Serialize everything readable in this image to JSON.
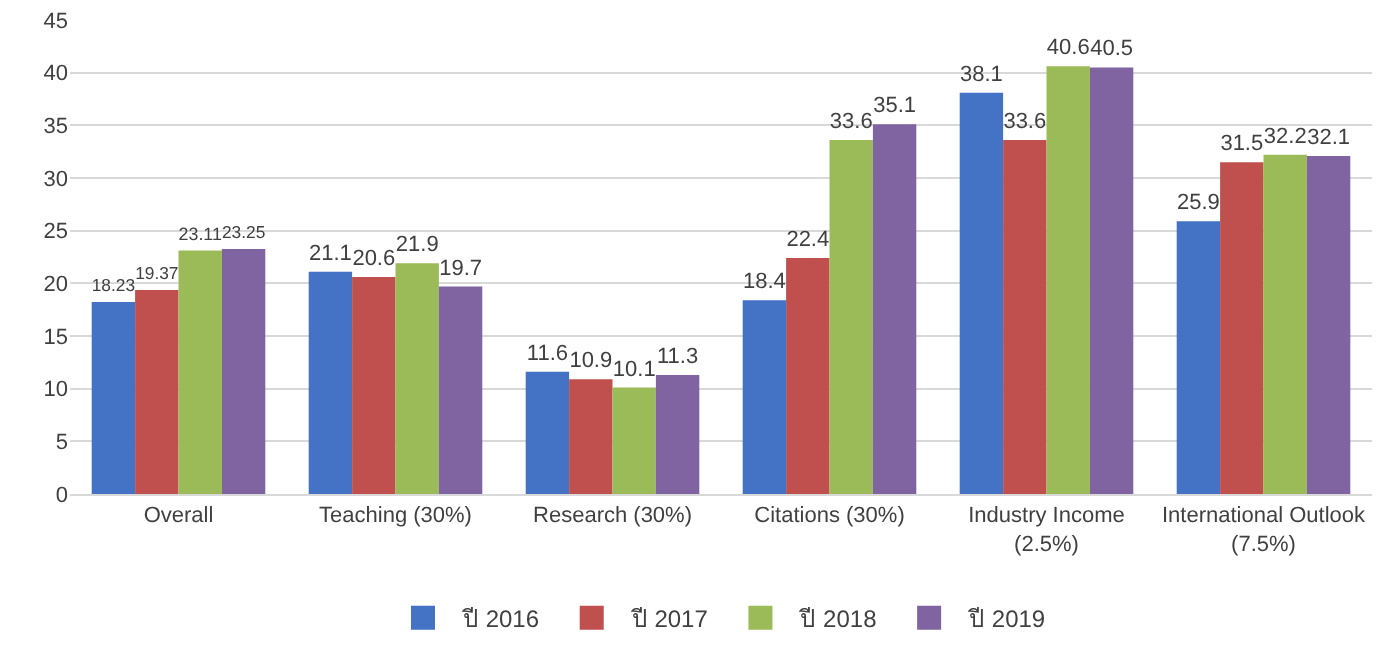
{
  "chart_data": {
    "type": "bar",
    "categories": [
      "Overall",
      "Teaching (30%)",
      "Research (30%)",
      "Citations (30%)",
      "Industry Income (2.5%)",
      "International Outlook (7.5%)"
    ],
    "series": [
      {
        "name": "ปี 2016",
        "color": "#4472c4",
        "values": [
          18.23,
          21.1,
          11.6,
          18.4,
          38.1,
          25.9
        ]
      },
      {
        "name": "ปี 2017",
        "color": "#c0504d",
        "values": [
          19.37,
          20.6,
          10.9,
          22.4,
          33.6,
          31.5
        ]
      },
      {
        "name": "ปี 2018",
        "color": "#9bbb59",
        "values": [
          23.11,
          21.9,
          10.1,
          33.6,
          40.6,
          32.2
        ]
      },
      {
        "name": "ปี 2019",
        "color": "#8064a2",
        "values": [
          23.25,
          19.7,
          11.3,
          35.1,
          40.5,
          32.1
        ]
      }
    ],
    "ylim": [
      0,
      45
    ],
    "yticks": [
      0,
      5,
      10,
      15,
      20,
      25,
      30,
      35,
      40,
      45
    ],
    "grid": "y",
    "legend": "bottom",
    "data_labels": true
  }
}
